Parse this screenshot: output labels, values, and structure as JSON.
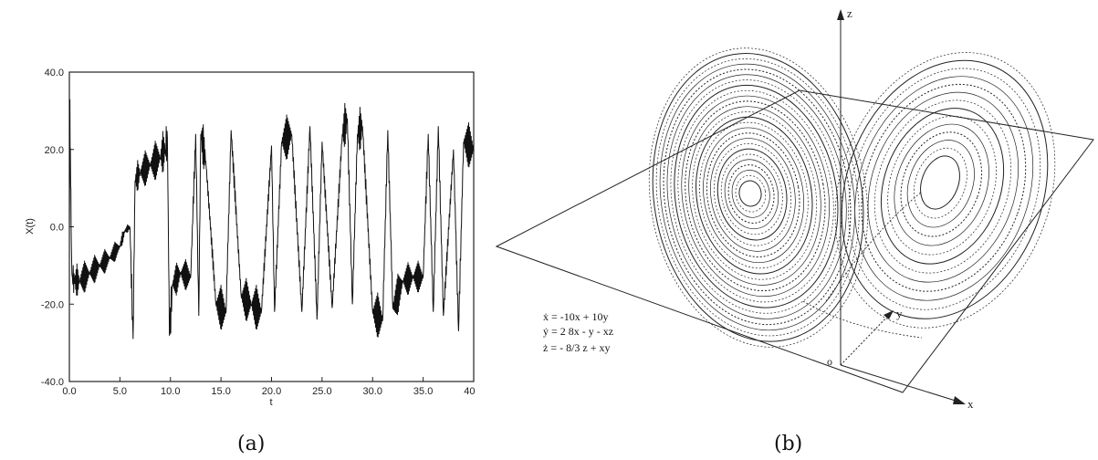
{
  "captions": {
    "a": "(a)",
    "b": "(b)"
  },
  "chart_data": [
    {
      "type": "line",
      "xlabel": "t",
      "ylabel": "X(t)",
      "xlim": [
        0,
        40
      ],
      "ylim": [
        -40,
        40
      ],
      "xticks": [
        "0.0",
        "5.0",
        "10.0",
        "15.0",
        "20.0",
        "25.0",
        "30.0",
        "35.0",
        "40.0"
      ],
      "yticks": [
        "-40.0",
        "-20.0",
        "0.0",
        "20.0",
        "40.0"
      ],
      "grid": false,
      "series": [
        {
          "x": [
            0,
            0.05,
            0.1,
            0.15,
            0.2,
            0.3,
            0.5,
            1,
            2,
            3,
            4,
            5,
            5.5,
            6,
            6.3,
            6.5,
            7,
            8,
            9,
            9.5,
            9.7,
            9.9,
            10.2,
            11,
            12,
            12.5,
            12.8,
            13,
            13.5,
            14.5,
            15.5,
            16,
            17,
            18,
            19,
            20,
            20.3,
            21,
            22,
            23,
            23.8,
            24.5,
            25,
            26,
            27,
            27.5,
            28,
            28.5,
            29,
            30,
            31,
            31.5,
            32,
            33,
            34,
            35,
            35.5,
            36,
            36.5,
            37,
            38,
            38.5,
            39,
            40
          ],
          "y": [
            0,
            33,
            20,
            10,
            -5,
            -13,
            -14,
            -14,
            -12,
            -10,
            -8,
            -5,
            -1,
            0,
            -29,
            12,
            14,
            16,
            18,
            20,
            23,
            -28,
            -15,
            -12,
            -13,
            24,
            -23,
            24,
            17,
            -20,
            -22,
            25,
            -18,
            -20,
            -22,
            21,
            -22,
            22,
            24,
            -22,
            26,
            -24,
            22,
            -21,
            24,
            28,
            -20,
            24,
            26,
            -22,
            -24,
            25,
            -21,
            -14,
            -13,
            -13,
            24,
            -22,
            26,
            -23,
            20,
            -27,
            22,
            20
          ]
        }
      ]
    },
    {
      "type": "diagram",
      "axis_labels": {
        "z": "z",
        "y": "y",
        "x": "x",
        "origin": "o"
      },
      "equations": [
        "ẋ = -10x + 10y",
        "ẏ = 2 8x - y - xz",
        "ż = - 8/3 z + xy"
      ]
    }
  ]
}
